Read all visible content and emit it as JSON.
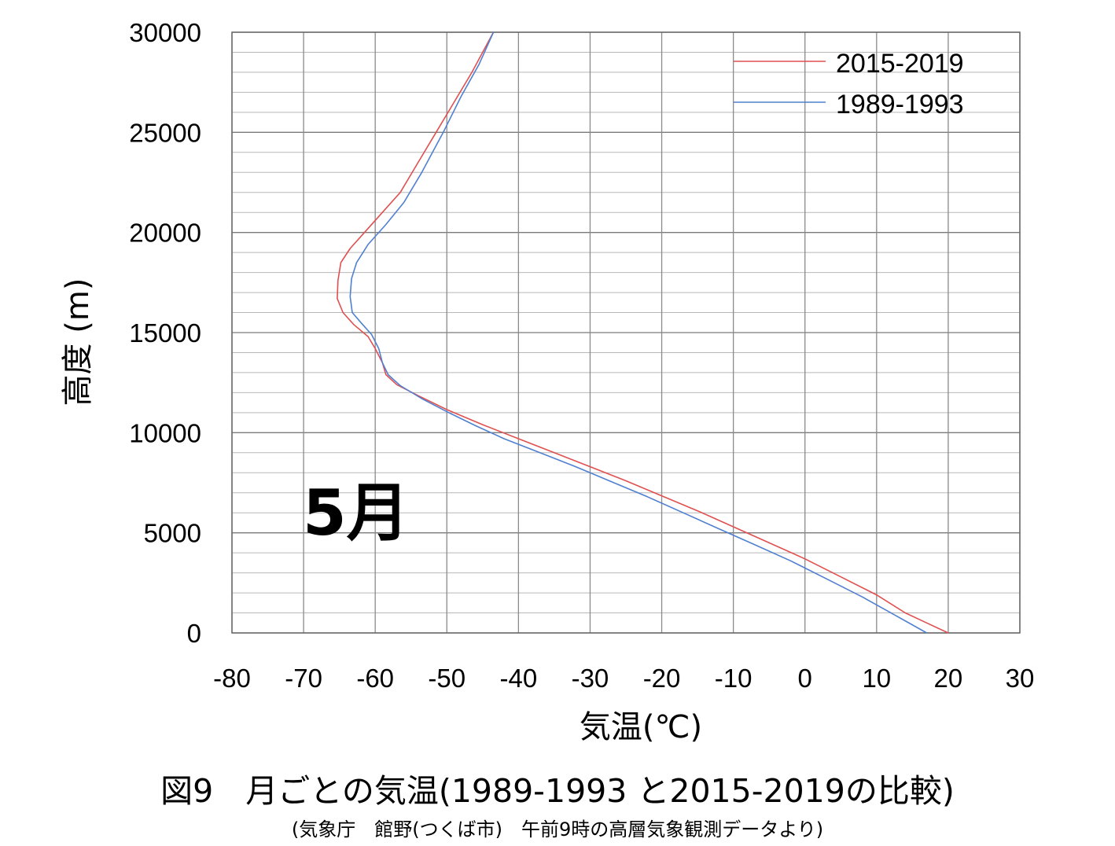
{
  "chart_data": {
    "type": "line",
    "panel_label": "5月",
    "xlabel": "気温(℃)",
    "ylabel": "高度 (m)",
    "xlim": [
      -80,
      30
    ],
    "ylim": [
      0,
      30000
    ],
    "x_ticks": [
      -80,
      -70,
      -60,
      -50,
      -40,
      -30,
      -20,
      -10,
      0,
      10,
      20,
      30
    ],
    "y_ticks": [
      0,
      5000,
      10000,
      15000,
      20000,
      25000,
      30000
    ],
    "x_tick_labels": [
      "-80",
      "-70",
      "-60",
      "-50",
      "-40",
      "-30",
      "-20",
      "-10",
      "0",
      "10",
      "20",
      "30"
    ],
    "y_tick_labels": [
      "0",
      "5000",
      "10000",
      "15000",
      "20000",
      "25000",
      "30000"
    ],
    "grid": true,
    "legend_position": "top-right",
    "series": [
      {
        "name": "2015-2019",
        "color": "#e05050",
        "points": [
          [
            20,
            0
          ],
          [
            17,
            500
          ],
          [
            14,
            1000
          ],
          [
            10,
            1900
          ],
          [
            5,
            2800
          ],
          [
            0,
            3700
          ],
          [
            -5,
            4500
          ],
          [
            -10,
            5300
          ],
          [
            -15,
            6100
          ],
          [
            -20,
            6850
          ],
          [
            -25,
            7600
          ],
          [
            -30,
            8300
          ],
          [
            -35,
            9000
          ],
          [
            -40,
            9700
          ],
          [
            -45,
            10400
          ],
          [
            -50,
            11150
          ],
          [
            -54,
            11850
          ],
          [
            -57,
            12400
          ],
          [
            -58.5,
            12900
          ],
          [
            -59,
            13500
          ],
          [
            -60,
            14200
          ],
          [
            -61,
            14800
          ],
          [
            -63,
            15400
          ],
          [
            -64.5,
            16000
          ],
          [
            -65.3,
            16700
          ],
          [
            -65.2,
            17600
          ],
          [
            -64.8,
            18500
          ],
          [
            -63.5,
            19200
          ],
          [
            -61.5,
            20000
          ],
          [
            -59.5,
            20800
          ],
          [
            -56.5,
            22000
          ],
          [
            -54,
            23500
          ],
          [
            -51.5,
            25000
          ],
          [
            -49,
            26500
          ],
          [
            -46.5,
            28000
          ],
          [
            -43.5,
            30000
          ]
        ]
      },
      {
        "name": "1989-1993",
        "color": "#5080d0",
        "points": [
          [
            17,
            0
          ],
          [
            13,
            800
          ],
          [
            8,
            1800
          ],
          [
            3,
            2700
          ],
          [
            -2,
            3600
          ],
          [
            -7,
            4400
          ],
          [
            -12,
            5200
          ],
          [
            -17,
            6000
          ],
          [
            -22,
            6800
          ],
          [
            -27,
            7550
          ],
          [
            -32,
            8300
          ],
          [
            -37,
            9000
          ],
          [
            -42,
            9700
          ],
          [
            -46,
            10350
          ],
          [
            -50,
            11050
          ],
          [
            -53.5,
            11700
          ],
          [
            -56.5,
            12350
          ],
          [
            -58.2,
            12900
          ],
          [
            -59,
            13500
          ],
          [
            -59.5,
            14200
          ],
          [
            -60.5,
            14900
          ],
          [
            -62,
            15500
          ],
          [
            -63.2,
            16000
          ],
          [
            -63.5,
            16800
          ],
          [
            -63.3,
            17700
          ],
          [
            -62.6,
            18500
          ],
          [
            -61,
            19400
          ],
          [
            -58.5,
            20400
          ],
          [
            -56,
            21500
          ],
          [
            -53.5,
            23000
          ],
          [
            -50.5,
            25000
          ],
          [
            -48,
            26800
          ],
          [
            -45.5,
            28400
          ],
          [
            -43.5,
            30000
          ]
        ]
      }
    ]
  },
  "figure": {
    "title": "図9　月ごとの気温(1989-1993 と2015-2019の比較)",
    "source": "(気象庁　館野(つくば市)　午前9時の高層気象観測データより)"
  }
}
